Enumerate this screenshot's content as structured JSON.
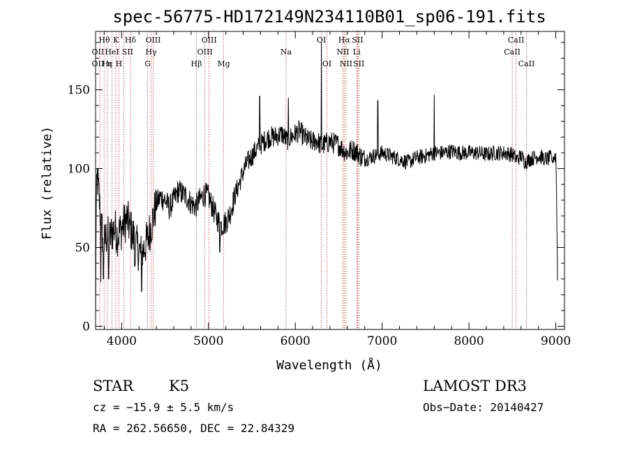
{
  "chart_data": {
    "type": "line",
    "title": "spec-56775-HD172149N234110B01_sp06-191.fits",
    "xlabel": "Wavelength (Å)",
    "ylabel": "Flux (relative)",
    "xlim": [
      3700,
      9100
    ],
    "ylim": [
      -2,
      187
    ],
    "x_ticks": [
      4000,
      5000,
      6000,
      7000,
      8000,
      9000
    ],
    "y_ticks": [
      0,
      50,
      100,
      150
    ],
    "grid": false,
    "series": [
      {
        "color": "#000000",
        "anchors": [
          [
            3700,
            0
          ],
          [
            3705,
            72
          ],
          [
            3720,
            95
          ],
          [
            3740,
            82
          ],
          [
            3760,
            66
          ],
          [
            3780,
            58
          ],
          [
            3800,
            52
          ],
          [
            3830,
            58
          ],
          [
            3860,
            55
          ],
          [
            3890,
            60
          ],
          [
            3920,
            62
          ],
          [
            3950,
            58
          ],
          [
            3980,
            60
          ],
          [
            4000,
            62
          ],
          [
            4030,
            65
          ],
          [
            4060,
            68
          ],
          [
            4100,
            62
          ],
          [
            4130,
            58
          ],
          [
            4160,
            52
          ],
          [
            4200,
            48
          ],
          [
            4230,
            45
          ],
          [
            4260,
            50
          ],
          [
            4300,
            55
          ],
          [
            4330,
            62
          ],
          [
            4360,
            68
          ],
          [
            4400,
            78
          ],
          [
            4450,
            82
          ],
          [
            4500,
            80
          ],
          [
            4550,
            75
          ],
          [
            4600,
            80
          ],
          [
            4650,
            86
          ],
          [
            4700,
            84
          ],
          [
            4750,
            82
          ],
          [
            4800,
            78
          ],
          [
            4850,
            76
          ],
          [
            4900,
            80
          ],
          [
            4950,
            84
          ],
          [
            5000,
            82
          ],
          [
            5050,
            75
          ],
          [
            5100,
            68
          ],
          [
            5150,
            64
          ],
          [
            5200,
            66
          ],
          [
            5250,
            72
          ],
          [
            5300,
            82
          ],
          [
            5350,
            90
          ],
          [
            5400,
            98
          ],
          [
            5450,
            104
          ],
          [
            5500,
            108
          ],
          [
            5550,
            112
          ],
          [
            5600,
            115
          ],
          [
            5650,
            118
          ],
          [
            5700,
            120
          ],
          [
            5750,
            120
          ],
          [
            5800,
            121
          ],
          [
            5850,
            122
          ],
          [
            5900,
            118
          ],
          [
            5950,
            120
          ],
          [
            6000,
            122
          ],
          [
            6050,
            124
          ],
          [
            6100,
            120
          ],
          [
            6150,
            118
          ],
          [
            6200,
            117
          ],
          [
            6250,
            118
          ],
          [
            6300,
            114
          ],
          [
            6350,
            116
          ],
          [
            6400,
            117
          ],
          [
            6450,
            116
          ],
          [
            6500,
            115
          ],
          [
            6550,
            112
          ],
          [
            6600,
            110
          ],
          [
            6650,
            112
          ],
          [
            6700,
            111
          ],
          [
            6750,
            108
          ],
          [
            6800,
            106
          ],
          [
            6850,
            107
          ],
          [
            6900,
            108
          ],
          [
            6950,
            109
          ],
          [
            7000,
            110
          ],
          [
            7100,
            108
          ],
          [
            7200,
            106
          ],
          [
            7300,
            104
          ],
          [
            7400,
            107
          ],
          [
            7500,
            108
          ],
          [
            7600,
            110
          ],
          [
            7700,
            110
          ],
          [
            7800,
            111
          ],
          [
            7900,
            110
          ],
          [
            8000,
            110
          ],
          [
            8100,
            110
          ],
          [
            8200,
            109
          ],
          [
            8300,
            110
          ],
          [
            8400,
            110
          ],
          [
            8500,
            109
          ],
          [
            8550,
            106
          ],
          [
            8600,
            108
          ],
          [
            8650,
            104
          ],
          [
            8700,
            106
          ],
          [
            8800,
            108
          ],
          [
            8900,
            106
          ],
          [
            9000,
            108
          ],
          [
            9010,
            80
          ],
          [
            9020,
            30
          ]
        ],
        "spikes": [
          [
            6300,
            180
          ],
          [
            5590,
            146
          ],
          [
            5920,
            145
          ],
          [
            7600,
            147
          ],
          [
            5130,
            47
          ],
          [
            3760,
            28
          ],
          [
            3790,
            30
          ],
          [
            4230,
            22
          ],
          [
            3850,
            30
          ],
          [
            4150,
            38
          ],
          [
            6950,
            143
          ],
          [
            8870,
            104
          ],
          [
            8960,
            104
          ]
        ]
      }
    ],
    "line_markers": {
      "wavelengths": [
        3750,
        3798,
        3835,
        3889,
        3934,
        3969,
        4026,
        4102,
        4300,
        4340,
        4363,
        4861,
        4959,
        5007,
        5175,
        5893,
        6300,
        6364,
        6548,
        6563,
        6584,
        6707,
        6717,
        6731,
        8498,
        8542,
        8662
      ],
      "labels": [
        {
          "text": "Hθ",
          "x": 3800,
          "row": 1
        },
        {
          "text": "K",
          "x": 3934,
          "row": 1
        },
        {
          "text": "Hδ",
          "x": 4102,
          "row": 1
        },
        {
          "text": "OIII",
          "x": 4363,
          "row": 1
        },
        {
          "text": "OIII",
          "x": 5007,
          "row": 1
        },
        {
          "text": "OI",
          "x": 6300,
          "row": 1
        },
        {
          "text": "Hα",
          "x": 6563,
          "row": 1
        },
        {
          "text": "SII",
          "x": 6717,
          "row": 1
        },
        {
          "text": "CaII",
          "x": 8542,
          "row": 1
        },
        {
          "text": "OII",
          "x": 3727,
          "row": 2
        },
        {
          "text": "HeI",
          "x": 3889,
          "row": 2
        },
        {
          "text": "SII",
          "x": 4069,
          "row": 2
        },
        {
          "text": "Hγ",
          "x": 4340,
          "row": 2
        },
        {
          "text": "OIII",
          "x": 4959,
          "row": 2
        },
        {
          "text": "Na",
          "x": 5893,
          "row": 2
        },
        {
          "text": "NII",
          "x": 6548,
          "row": 2
        },
        {
          "text": "Li",
          "x": 6707,
          "row": 2
        },
        {
          "text": "CaII",
          "x": 8498,
          "row": 2
        },
        {
          "text": "OII",
          "x": 3727,
          "row": 3
        },
        {
          "text": "Hε",
          "x": 3835,
          "row": 3
        },
        {
          "text": "η",
          "x": 3860,
          "row": 3
        },
        {
          "text": "H",
          "x": 3969,
          "row": 3
        },
        {
          "text": "G",
          "x": 4300,
          "row": 3
        },
        {
          "text": "Hβ",
          "x": 4861,
          "row": 3
        },
        {
          "text": "Mg",
          "x": 5175,
          "row": 3
        },
        {
          "text": "OI",
          "x": 6364,
          "row": 3
        },
        {
          "text": "NII",
          "x": 6584,
          "row": 3
        },
        {
          "text": "SII",
          "x": 6731,
          "row": 3
        },
        {
          "text": "CaII",
          "x": 8662,
          "row": 3
        }
      ],
      "color": "#b03030"
    }
  },
  "info": {
    "object_class": "STAR",
    "subclass": "K5",
    "survey": "LAMOST DR3",
    "cz": "cz = −15.9 ± 5.5 km/s",
    "obs_date": "Obs−Date: 20140427",
    "coords": "RA = 262.56650, DEC =  22.84329"
  }
}
